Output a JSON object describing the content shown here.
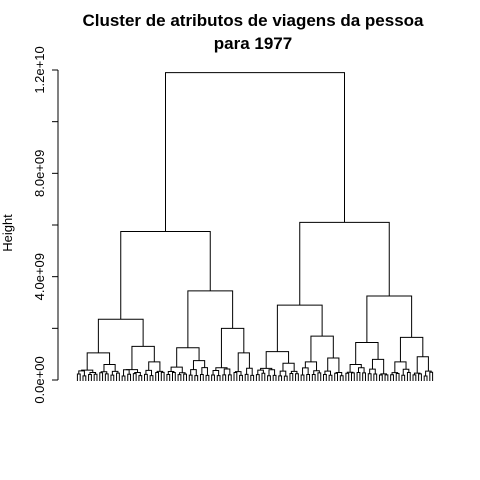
{
  "chart_data": {
    "type": "dendrogram",
    "title_line1": "Cluster de atributos de viagens da pessoa",
    "title_line2": "para 1977",
    "ylabel": "Height",
    "ylim": [
      0,
      12000000000
    ],
    "yticks": [
      {
        "value": 0,
        "label": "0.0e+00"
      },
      {
        "value": 4000000000,
        "label": "4.0e+09"
      },
      {
        "value": 8000000000,
        "label": "8.0e+09"
      },
      {
        "value": 12000000000,
        "label": "1.2e+10"
      }
    ],
    "minor_tick_step": 2000000000,
    "root_height": 11900000000,
    "merge_heights_approx": {
      "root": 11900000000,
      "left_main": 5750000000,
      "right_main": 6100000000,
      "left_sub": [
        2350000000,
        3450000000
      ],
      "right_sub": [
        2900000000,
        3250000000
      ],
      "level3": [
        1050000000,
        1300000000,
        1250000000,
        2000000000,
        1100000000,
        1700000000,
        1450000000,
        1650000000
      ],
      "level4": [
        380000000,
        600000000,
        400000000,
        700000000,
        500000000,
        750000000,
        400000000,
        1050000000,
        450000000,
        650000000,
        700000000,
        850000000,
        600000000,
        800000000,
        700000000,
        900000000
      ]
    },
    "leaf_count": 128
  }
}
